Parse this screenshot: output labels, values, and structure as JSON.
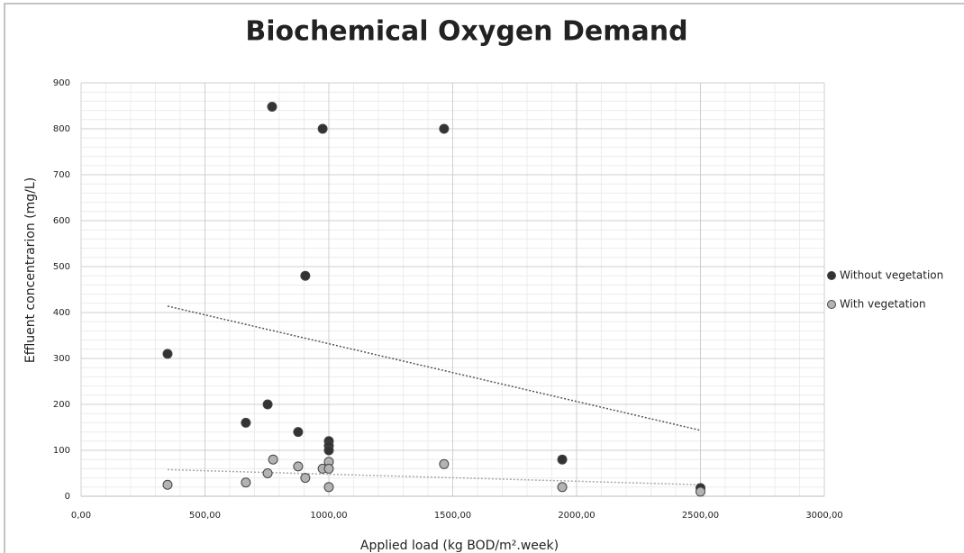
{
  "chart_data": {
    "type": "scatter",
    "title": "Biochemical Oxygen Demand",
    "x_label": "Applied load (kg BOD/m².week)",
    "y_label": "Effluent concentrarion (mg/L)",
    "xlim": [
      0,
      3000
    ],
    "ylim": [
      0,
      900
    ],
    "xticks": [
      {
        "value": 0,
        "label": "0,00"
      },
      {
        "value": 500,
        "label": "500,00"
      },
      {
        "value": 1000,
        "label": "1000,00"
      },
      {
        "value": 1500,
        "label": "1500,00"
      },
      {
        "value": 2000,
        "label": "2000,00"
      },
      {
        "value": 2500,
        "label": "2500,00"
      },
      {
        "value": 3000,
        "label": "3000,00"
      }
    ],
    "yticks": [
      0,
      100,
      200,
      300,
      400,
      500,
      600,
      700,
      800,
      900
    ],
    "grid": true,
    "minor_grid": true,
    "trendline": "linear",
    "legend": "right",
    "series": [
      {
        "name": "Without vegetation",
        "color": "#333333",
        "x": [
          771,
          975,
          1465,
          905,
          349,
          753,
          665,
          876,
          1000,
          1000,
          1000,
          1942,
          2500
        ],
        "values": [
          848,
          800,
          800,
          480,
          310,
          200,
          160,
          140,
          120,
          110,
          100,
          80,
          18
        ]
      },
      {
        "name": "With vegetation",
        "color": "#b3b3b3",
        "x": [
          349,
          665,
          753,
          775,
          876,
          905,
          975,
          1000,
          1000,
          1000,
          1465,
          1942,
          2500
        ],
        "values": [
          25,
          30,
          50,
          80,
          65,
          40,
          60,
          75,
          60,
          20,
          70,
          20,
          10
        ]
      }
    ]
  }
}
